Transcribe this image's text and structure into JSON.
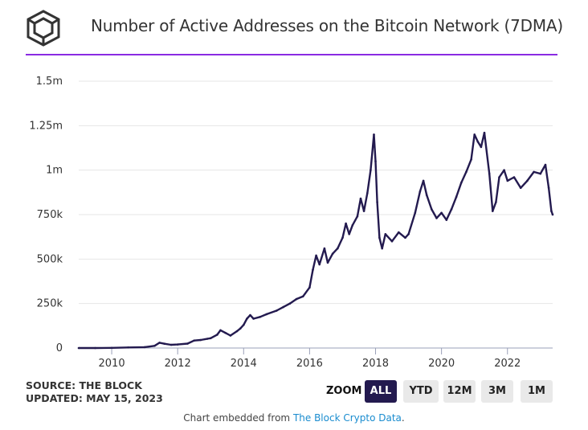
{
  "header": {
    "title": "Number of Active Addresses on the Bitcoin Network (7DMA)",
    "logo_icon": "the-block-cube-icon"
  },
  "colors": {
    "accent_rule": "#8a2be2",
    "line": "#231a4f",
    "active_button": "#231a4f"
  },
  "chart_data": {
    "type": "line",
    "title": "Number of Active Addresses on the Bitcoin Network (7DMA)",
    "xlabel": "",
    "ylabel": "",
    "xlim": [
      2009.0,
      2023.37
    ],
    "ylim": [
      0,
      1500000
    ],
    "y_ticks": [
      {
        "value": 0,
        "label": "0"
      },
      {
        "value": 250000,
        "label": "250k"
      },
      {
        "value": 500000,
        "label": "500k"
      },
      {
        "value": 750000,
        "label": "750k"
      },
      {
        "value": 1000000,
        "label": "1m"
      },
      {
        "value": 1250000,
        "label": "1.25m"
      },
      {
        "value": 1500000,
        "label": "1.5m"
      }
    ],
    "x_ticks": [
      {
        "value": 2010,
        "label": "2010"
      },
      {
        "value": 2012,
        "label": "2012"
      },
      {
        "value": 2014,
        "label": "2014"
      },
      {
        "value": 2016,
        "label": "2016"
      },
      {
        "value": 2018,
        "label": "2018"
      },
      {
        "value": 2020,
        "label": "2020"
      },
      {
        "value": 2022,
        "label": "2022"
      }
    ],
    "grid": true,
    "legend": "none",
    "series": [
      {
        "name": "Active Addresses (7DMA)",
        "points": [
          [
            2009.0,
            0
          ],
          [
            2009.5,
            0
          ],
          [
            2010.0,
            1000
          ],
          [
            2010.5,
            3000
          ],
          [
            2011.0,
            5000
          ],
          [
            2011.3,
            12000
          ],
          [
            2011.45,
            30000
          ],
          [
            2011.6,
            24000
          ],
          [
            2011.8,
            18000
          ],
          [
            2012.0,
            20000
          ],
          [
            2012.3,
            25000
          ],
          [
            2012.5,
            42000
          ],
          [
            2012.7,
            45000
          ],
          [
            2012.9,
            52000
          ],
          [
            2013.0,
            55000
          ],
          [
            2013.2,
            75000
          ],
          [
            2013.3,
            100000
          ],
          [
            2013.45,
            85000
          ],
          [
            2013.6,
            70000
          ],
          [
            2013.8,
            95000
          ],
          [
            2013.9,
            110000
          ],
          [
            2014.0,
            130000
          ],
          [
            2014.1,
            165000
          ],
          [
            2014.2,
            185000
          ],
          [
            2014.3,
            165000
          ],
          [
            2014.5,
            175000
          ],
          [
            2014.7,
            190000
          ],
          [
            2015.0,
            210000
          ],
          [
            2015.2,
            230000
          ],
          [
            2015.4,
            250000
          ],
          [
            2015.6,
            275000
          ],
          [
            2015.8,
            290000
          ],
          [
            2016.0,
            340000
          ],
          [
            2016.1,
            440000
          ],
          [
            2016.2,
            520000
          ],
          [
            2016.3,
            470000
          ],
          [
            2016.45,
            560000
          ],
          [
            2016.55,
            480000
          ],
          [
            2016.7,
            530000
          ],
          [
            2016.85,
            560000
          ],
          [
            2017.0,
            620000
          ],
          [
            2017.1,
            700000
          ],
          [
            2017.2,
            640000
          ],
          [
            2017.3,
            690000
          ],
          [
            2017.45,
            740000
          ],
          [
            2017.55,
            840000
          ],
          [
            2017.65,
            770000
          ],
          [
            2017.75,
            870000
          ],
          [
            2017.85,
            1000000
          ],
          [
            2017.95,
            1200000
          ],
          [
            2018.0,
            1050000
          ],
          [
            2018.05,
            820000
          ],
          [
            2018.12,
            620000
          ],
          [
            2018.2,
            560000
          ],
          [
            2018.3,
            640000
          ],
          [
            2018.5,
            600000
          ],
          [
            2018.7,
            650000
          ],
          [
            2018.9,
            620000
          ],
          [
            2019.0,
            640000
          ],
          [
            2019.2,
            760000
          ],
          [
            2019.35,
            880000
          ],
          [
            2019.45,
            940000
          ],
          [
            2019.55,
            860000
          ],
          [
            2019.7,
            780000
          ],
          [
            2019.85,
            730000
          ],
          [
            2020.0,
            760000
          ],
          [
            2020.15,
            720000
          ],
          [
            2020.3,
            780000
          ],
          [
            2020.45,
            850000
          ],
          [
            2020.6,
            930000
          ],
          [
            2020.75,
            990000
          ],
          [
            2020.9,
            1060000
          ],
          [
            2021.0,
            1200000
          ],
          [
            2021.1,
            1160000
          ],
          [
            2021.2,
            1130000
          ],
          [
            2021.3,
            1210000
          ],
          [
            2021.45,
            980000
          ],
          [
            2021.55,
            770000
          ],
          [
            2021.65,
            820000
          ],
          [
            2021.75,
            960000
          ],
          [
            2021.9,
            1000000
          ],
          [
            2022.0,
            940000
          ],
          [
            2022.2,
            960000
          ],
          [
            2022.4,
            900000
          ],
          [
            2022.6,
            940000
          ],
          [
            2022.8,
            990000
          ],
          [
            2023.0,
            980000
          ],
          [
            2023.15,
            1030000
          ],
          [
            2023.25,
            900000
          ],
          [
            2023.33,
            770000
          ],
          [
            2023.37,
            750000
          ]
        ]
      }
    ]
  },
  "footer": {
    "source_line": "SOURCE: THE BLOCK",
    "updated_line": "UPDATED: MAY 15, 2023",
    "embedded_prefix": "Chart embedded from",
    "embedded_link": "The Block Crypto Data",
    "embedded_suffix": "."
  },
  "zoom": {
    "label": "ZOOM",
    "buttons": [
      "ALL",
      "YTD",
      "12M",
      "3M",
      "1M"
    ],
    "active": "ALL"
  }
}
